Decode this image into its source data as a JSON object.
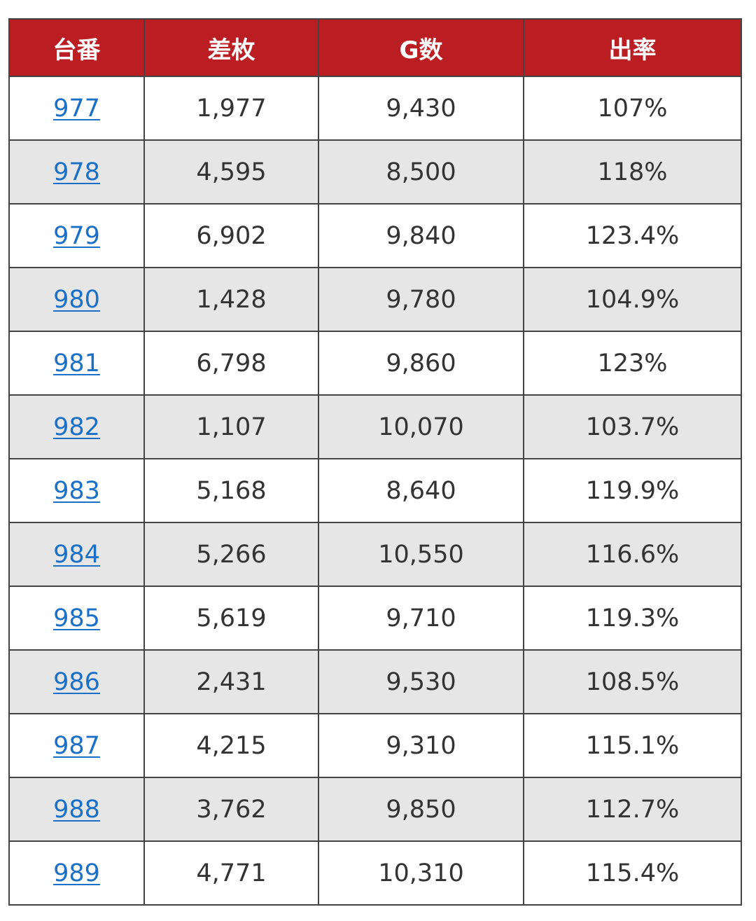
{
  "table": {
    "headers": [
      "台番",
      "差枚",
      "G数",
      "出率"
    ],
    "rows": [
      [
        "977",
        "1,977",
        "9,430",
        "107%"
      ],
      [
        "978",
        "4,595",
        "8,500",
        "118%"
      ],
      [
        "979",
        "6,902",
        "9,840",
        "123.4%"
      ],
      [
        "980",
        "1,428",
        "9,780",
        "104.9%"
      ],
      [
        "981",
        "6,798",
        "9,860",
        "123%"
      ],
      [
        "982",
        "1,107",
        "10,070",
        "103.7%"
      ],
      [
        "983",
        "5,168",
        "8,640",
        "119.9%"
      ],
      [
        "984",
        "5,266",
        "10,550",
        "116.6%"
      ],
      [
        "985",
        "5,619",
        "9,710",
        "119.3%"
      ],
      [
        "986",
        "2,431",
        "9,530",
        "108.5%"
      ],
      [
        "987",
        "4,215",
        "9,310",
        "115.1%"
      ],
      [
        "988",
        "3,762",
        "9,850",
        "112.7%"
      ],
      [
        "989",
        "4,771",
        "10,310",
        "115.4%"
      ]
    ]
  },
  "colors": {
    "header_bg": "#bb1e22",
    "header_text": "#ffffff",
    "link": "#1a6fc7",
    "stripe": "#e6e6e6",
    "border": "#444444"
  }
}
